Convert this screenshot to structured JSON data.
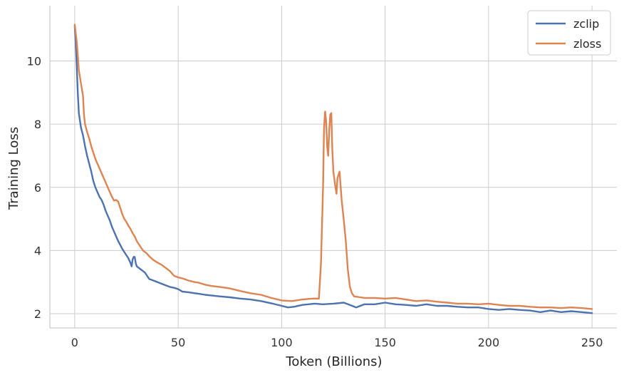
{
  "chart_data": {
    "type": "line",
    "title": "",
    "xlabel": "Token (Billions)",
    "ylabel": "Training Loss",
    "xlim": [
      -12,
      262
    ],
    "ylim": [
      1.55,
      11.75
    ],
    "xticks": [
      0,
      50,
      100,
      150,
      200,
      250
    ],
    "yticks": [
      2,
      4,
      6,
      8,
      10
    ],
    "grid": true,
    "legend_position": "top-right",
    "series": [
      {
        "name": "zclip",
        "color": "#4c72b0",
        "points": [
          [
            0,
            11.1
          ],
          [
            0.5,
            10.6
          ],
          [
            1,
            9.8
          ],
          [
            1.5,
            9.0
          ],
          [
            2,
            8.35
          ],
          [
            3,
            7.9
          ],
          [
            4,
            7.65
          ],
          [
            5,
            7.3
          ],
          [
            6,
            7.0
          ],
          [
            7,
            6.75
          ],
          [
            8,
            6.5
          ],
          [
            9,
            6.2
          ],
          [
            10,
            6.0
          ],
          [
            11,
            5.85
          ],
          [
            12,
            5.7
          ],
          [
            13,
            5.6
          ],
          [
            14,
            5.45
          ],
          [
            15,
            5.25
          ],
          [
            16,
            5.1
          ],
          [
            17,
            4.95
          ],
          [
            18,
            4.75
          ],
          [
            19,
            4.6
          ],
          [
            20,
            4.45
          ],
          [
            21,
            4.3
          ],
          [
            22,
            4.18
          ],
          [
            23,
            4.05
          ],
          [
            24,
            3.95
          ],
          [
            25,
            3.85
          ],
          [
            26,
            3.75
          ],
          [
            27,
            3.6
          ],
          [
            27.5,
            3.5
          ],
          [
            28,
            3.72
          ],
          [
            28.5,
            3.8
          ],
          [
            29,
            3.8
          ],
          [
            29.5,
            3.6
          ],
          [
            30,
            3.5
          ],
          [
            31,
            3.45
          ],
          [
            32,
            3.4
          ],
          [
            33,
            3.35
          ],
          [
            34,
            3.3
          ],
          [
            35,
            3.2
          ],
          [
            36,
            3.1
          ],
          [
            38,
            3.05
          ],
          [
            40,
            3.0
          ],
          [
            42,
            2.95
          ],
          [
            44,
            2.9
          ],
          [
            46,
            2.85
          ],
          [
            48,
            2.82
          ],
          [
            50,
            2.78
          ],
          [
            52,
            2.7
          ],
          [
            55,
            2.68
          ],
          [
            58,
            2.65
          ],
          [
            60,
            2.63
          ],
          [
            63,
            2.6
          ],
          [
            66,
            2.58
          ],
          [
            70,
            2.55
          ],
          [
            75,
            2.52
          ],
          [
            80,
            2.48
          ],
          [
            85,
            2.45
          ],
          [
            90,
            2.4
          ],
          [
            95,
            2.33
          ],
          [
            100,
            2.25
          ],
          [
            103,
            2.2
          ],
          [
            106,
            2.22
          ],
          [
            110,
            2.28
          ],
          [
            113,
            2.3
          ],
          [
            116,
            2.32
          ],
          [
            120,
            2.3
          ],
          [
            125,
            2.32
          ],
          [
            130,
            2.35
          ],
          [
            133,
            2.28
          ],
          [
            136,
            2.2
          ],
          [
            140,
            2.3
          ],
          [
            145,
            2.3
          ],
          [
            150,
            2.35
          ],
          [
            155,
            2.3
          ],
          [
            160,
            2.28
          ],
          [
            165,
            2.25
          ],
          [
            170,
            2.3
          ],
          [
            175,
            2.25
          ],
          [
            180,
            2.25
          ],
          [
            185,
            2.22
          ],
          [
            190,
            2.2
          ],
          [
            195,
            2.2
          ],
          [
            200,
            2.15
          ],
          [
            205,
            2.12
          ],
          [
            210,
            2.15
          ],
          [
            215,
            2.12
          ],
          [
            220,
            2.1
          ],
          [
            225,
            2.05
          ],
          [
            230,
            2.1
          ],
          [
            235,
            2.05
          ],
          [
            240,
            2.08
          ],
          [
            245,
            2.05
          ],
          [
            250,
            2.02
          ]
        ]
      },
      {
        "name": "zloss",
        "color": "#dd8452",
        "points": [
          [
            0,
            11.15
          ],
          [
            1,
            10.6
          ],
          [
            2,
            9.7
          ],
          [
            3,
            9.3
          ],
          [
            4,
            8.9
          ],
          [
            4.5,
            8.3
          ],
          [
            5,
            8.0
          ],
          [
            6,
            7.75
          ],
          [
            7,
            7.55
          ],
          [
            8,
            7.3
          ],
          [
            9,
            7.1
          ],
          [
            10,
            6.9
          ],
          [
            11,
            6.75
          ],
          [
            12,
            6.6
          ],
          [
            13,
            6.45
          ],
          [
            14,
            6.3
          ],
          [
            15,
            6.15
          ],
          [
            16,
            6.0
          ],
          [
            17,
            5.85
          ],
          [
            18,
            5.7
          ],
          [
            19,
            5.58
          ],
          [
            20,
            5.6
          ],
          [
            21,
            5.55
          ],
          [
            22,
            5.35
          ],
          [
            23,
            5.15
          ],
          [
            24,
            5.0
          ],
          [
            25,
            4.9
          ],
          [
            26,
            4.78
          ],
          [
            27,
            4.68
          ],
          [
            28,
            4.55
          ],
          [
            29,
            4.45
          ],
          [
            30,
            4.3
          ],
          [
            31,
            4.2
          ],
          [
            32,
            4.1
          ],
          [
            33,
            4.0
          ],
          [
            34,
            3.95
          ],
          [
            35,
            3.9
          ],
          [
            36,
            3.82
          ],
          [
            38,
            3.7
          ],
          [
            40,
            3.62
          ],
          [
            42,
            3.55
          ],
          [
            44,
            3.45
          ],
          [
            46,
            3.35
          ],
          [
            48,
            3.2
          ],
          [
            50,
            3.15
          ],
          [
            52,
            3.12
          ],
          [
            55,
            3.05
          ],
          [
            58,
            3.0
          ],
          [
            60,
            2.98
          ],
          [
            63,
            2.92
          ],
          [
            66,
            2.88
          ],
          [
            70,
            2.85
          ],
          [
            75,
            2.8
          ],
          [
            80,
            2.72
          ],
          [
            85,
            2.65
          ],
          [
            90,
            2.6
          ],
          [
            95,
            2.5
          ],
          [
            100,
            2.42
          ],
          [
            105,
            2.4
          ],
          [
            110,
            2.45
          ],
          [
            115,
            2.48
          ],
          [
            118,
            2.48
          ],
          [
            119,
            3.6
          ],
          [
            120,
            6.0
          ],
          [
            120.5,
            7.9
          ],
          [
            121,
            8.4
          ],
          [
            121.5,
            8.1
          ],
          [
            122,
            7.3
          ],
          [
            122.5,
            7.0
          ],
          [
            123,
            7.8
          ],
          [
            123.5,
            8.3
          ],
          [
            124,
            8.35
          ],
          [
            124.5,
            7.2
          ],
          [
            125,
            6.5
          ],
          [
            126,
            6.0
          ],
          [
            126.5,
            5.8
          ],
          [
            127,
            6.3
          ],
          [
            128,
            6.5
          ],
          [
            129,
            5.6
          ],
          [
            130,
            5.0
          ],
          [
            131,
            4.3
          ],
          [
            132,
            3.4
          ],
          [
            133,
            2.85
          ],
          [
            134,
            2.65
          ],
          [
            135,
            2.55
          ],
          [
            138,
            2.52
          ],
          [
            140,
            2.5
          ],
          [
            145,
            2.5
          ],
          [
            150,
            2.48
          ],
          [
            155,
            2.5
          ],
          [
            160,
            2.45
          ],
          [
            165,
            2.4
          ],
          [
            170,
            2.42
          ],
          [
            175,
            2.38
          ],
          [
            180,
            2.35
          ],
          [
            185,
            2.32
          ],
          [
            190,
            2.32
          ],
          [
            195,
            2.3
          ],
          [
            200,
            2.32
          ],
          [
            205,
            2.28
          ],
          [
            210,
            2.25
          ],
          [
            215,
            2.25
          ],
          [
            220,
            2.22
          ],
          [
            225,
            2.2
          ],
          [
            230,
            2.2
          ],
          [
            235,
            2.18
          ],
          [
            240,
            2.2
          ],
          [
            245,
            2.18
          ],
          [
            250,
            2.15
          ]
        ]
      }
    ]
  }
}
